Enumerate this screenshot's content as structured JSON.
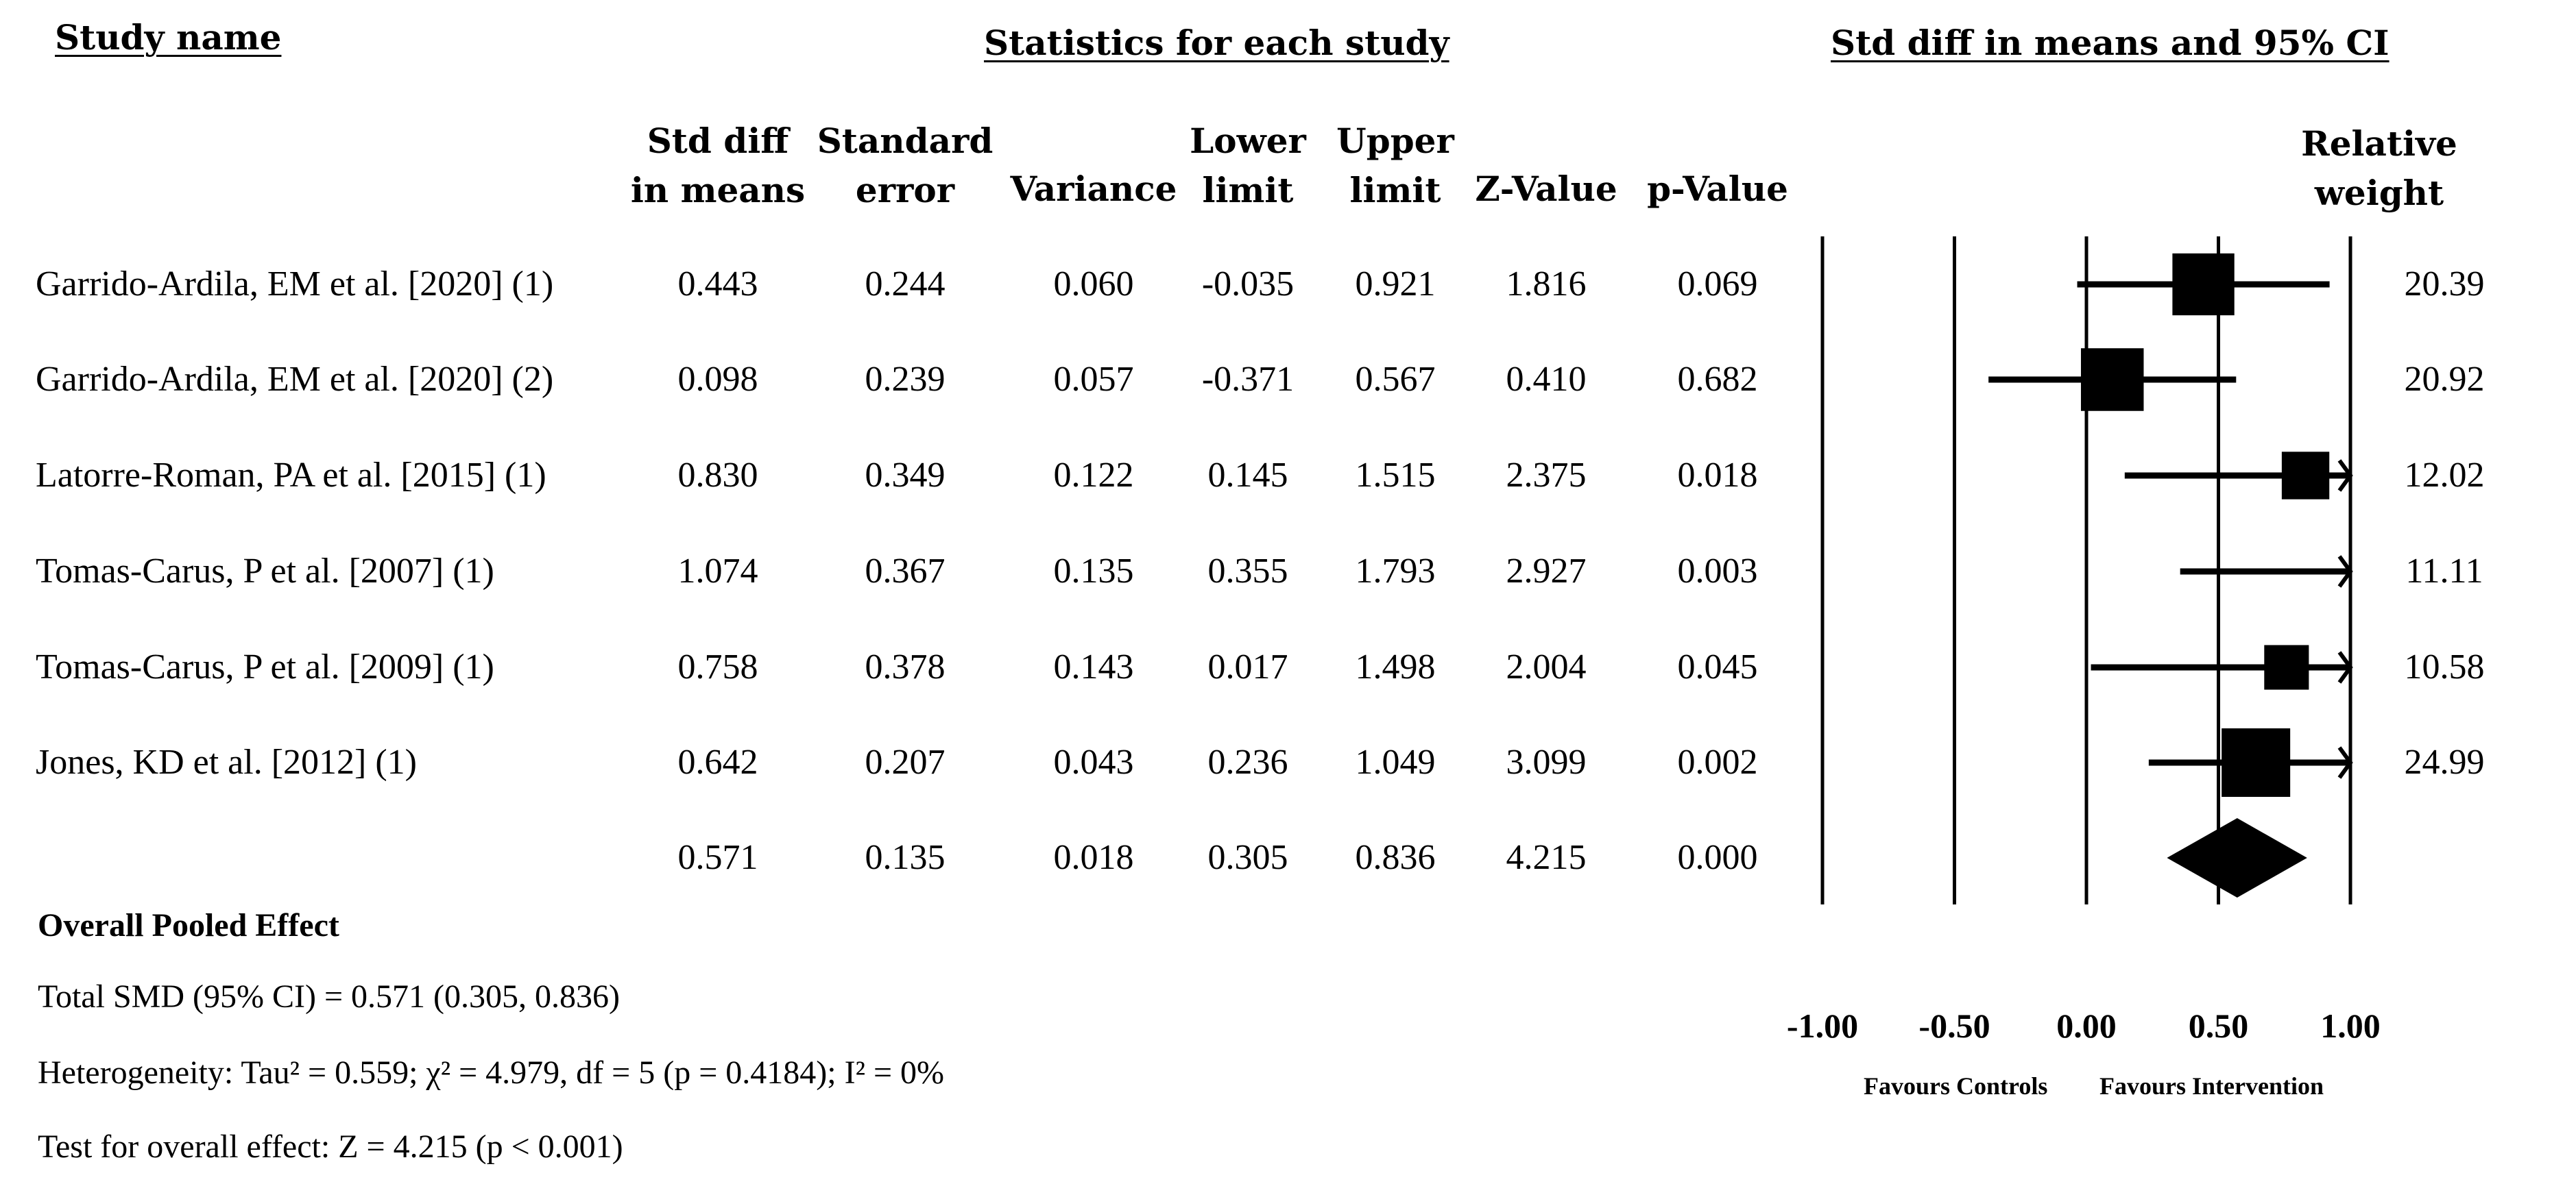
{
  "headers": {
    "study_name": "Study name",
    "stats_title": "Statistics for each study",
    "plot_title": "Std diff in means and 95% CI",
    "columns": [
      "Std diff\nin means",
      "Standard\nerror",
      "Variance",
      "Lower\nlimit",
      "Upper\nlimit",
      "Z-Value",
      "p-Value"
    ],
    "weight": "Relative\nweight"
  },
  "studies": [
    {
      "name": "Garrido-Ardila, EM et al. [2020] (1)",
      "smd": "0.443",
      "se": "0.244",
      "var": "0.060",
      "lower": "-0.035",
      "upper": "0.921",
      "z": "1.816",
      "p": "0.069",
      "weight": "20.39"
    },
    {
      "name": "Garrido-Ardila, EM et al. [2020] (2)",
      "smd": "0.098",
      "se": "0.239",
      "var": "0.057",
      "lower": "-0.371",
      "upper": "0.567",
      "z": "0.410",
      "p": "0.682",
      "weight": "20.92"
    },
    {
      "name": "Latorre-Roman, PA et al. [2015] (1)",
      "smd": "0.830",
      "se": "0.349",
      "var": "0.122",
      "lower": "0.145",
      "upper": "1.515",
      "z": "2.375",
      "p": "0.018",
      "weight": "12.02"
    },
    {
      "name": "Tomas-Carus, P et al. [2007] (1)",
      "smd": "1.074",
      "se": "0.367",
      "var": "0.135",
      "lower": "0.355",
      "upper": "1.793",
      "z": "2.927",
      "p": "0.003",
      "weight": "11.11"
    },
    {
      "name": "Tomas-Carus, P  et al. [2009] (1)",
      "smd": "0.758",
      "se": "0.378",
      "var": "0.143",
      "lower": "0.017",
      "upper": "1.498",
      "z": "2.004",
      "p": "0.045",
      "weight": "10.58"
    },
    {
      "name": "Jones, KD et al. [2012]  (1)",
      "smd": "0.642",
      "se": "0.207",
      "var": "0.043",
      "lower": "0.236",
      "upper": "1.049",
      "z": "3.099",
      "p": "0.002",
      "weight": "24.99"
    }
  ],
  "pooled": {
    "smd": "0.571",
    "se": "0.135",
    "var": "0.018",
    "lower": "0.305",
    "upper": "0.836",
    "z": "4.215",
    "p": "0.000"
  },
  "footer": {
    "title": "Overall Pooled Effect",
    "total": "Total SMD (95% CI) = 0.571 (0.305, 0.836)",
    "heterogeneity": "Heterogeneity: Tau² = 0.559; χ² = 4.979, df = 5 (p = 0.4184); I² = 0%",
    "test": "Test for overall effect: Z = 4.215 (p < 0.001)"
  },
  "chart_data": {
    "type": "forest",
    "title": "Std diff in means and 95% CI",
    "xlim": [
      -1.0,
      1.0
    ],
    "xticks": [
      "-1.00",
      "-0.50",
      "0.00",
      "0.50",
      "1.00"
    ],
    "favours_left": "Favours Controls",
    "favours_right": "Favours Intervention",
    "studies": [
      {
        "effect": 0.443,
        "lower": -0.035,
        "upper": 0.921,
        "weight": 20.39
      },
      {
        "effect": 0.098,
        "lower": -0.371,
        "upper": 0.567,
        "weight": 20.92
      },
      {
        "effect": 0.83,
        "lower": 0.145,
        "upper": 1.515,
        "weight": 12.02
      },
      {
        "effect": 1.074,
        "lower": 0.355,
        "upper": 1.793,
        "weight": 11.11
      },
      {
        "effect": 0.758,
        "lower": 0.017,
        "upper": 1.498,
        "weight": 10.58
      },
      {
        "effect": 0.642,
        "lower": 0.236,
        "upper": 1.049,
        "weight": 24.99
      }
    ],
    "pooled": {
      "effect": 0.571,
      "lower": 0.305,
      "upper": 0.836
    }
  }
}
